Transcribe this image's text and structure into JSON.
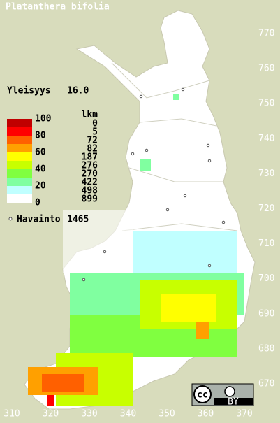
{
  "title": "Platanthera bifolia",
  "frequency": {
    "label": "Yleisyys",
    "value": "16.0"
  },
  "legend": {
    "scale_labels": [
      "100",
      "80",
      "60",
      "40",
      "20",
      "0"
    ],
    "count_header": "lkm",
    "counts": [
      "0",
      "5",
      "72",
      "82",
      "187",
      "276",
      "270",
      "422",
      "498",
      "899"
    ],
    "colors": [
      "#c00000",
      "#ff0000",
      "#ff6000",
      "#ffa000",
      "#ffff00",
      "#c8ff00",
      "#80ff40",
      "#80ffa0",
      "#c0ffff",
      "#ffffff"
    ]
  },
  "observations": {
    "label": "Havainto",
    "value": "1465"
  },
  "grid_labels": {
    "north": [
      "770",
      "760",
      "750",
      "740",
      "730",
      "720",
      "710",
      "700",
      "690",
      "680",
      "670"
    ],
    "east": [
      "310",
      "320",
      "330",
      "340",
      "350",
      "360",
      "370"
    ]
  },
  "license": {
    "cc": "cc",
    "by": "BY"
  }
}
